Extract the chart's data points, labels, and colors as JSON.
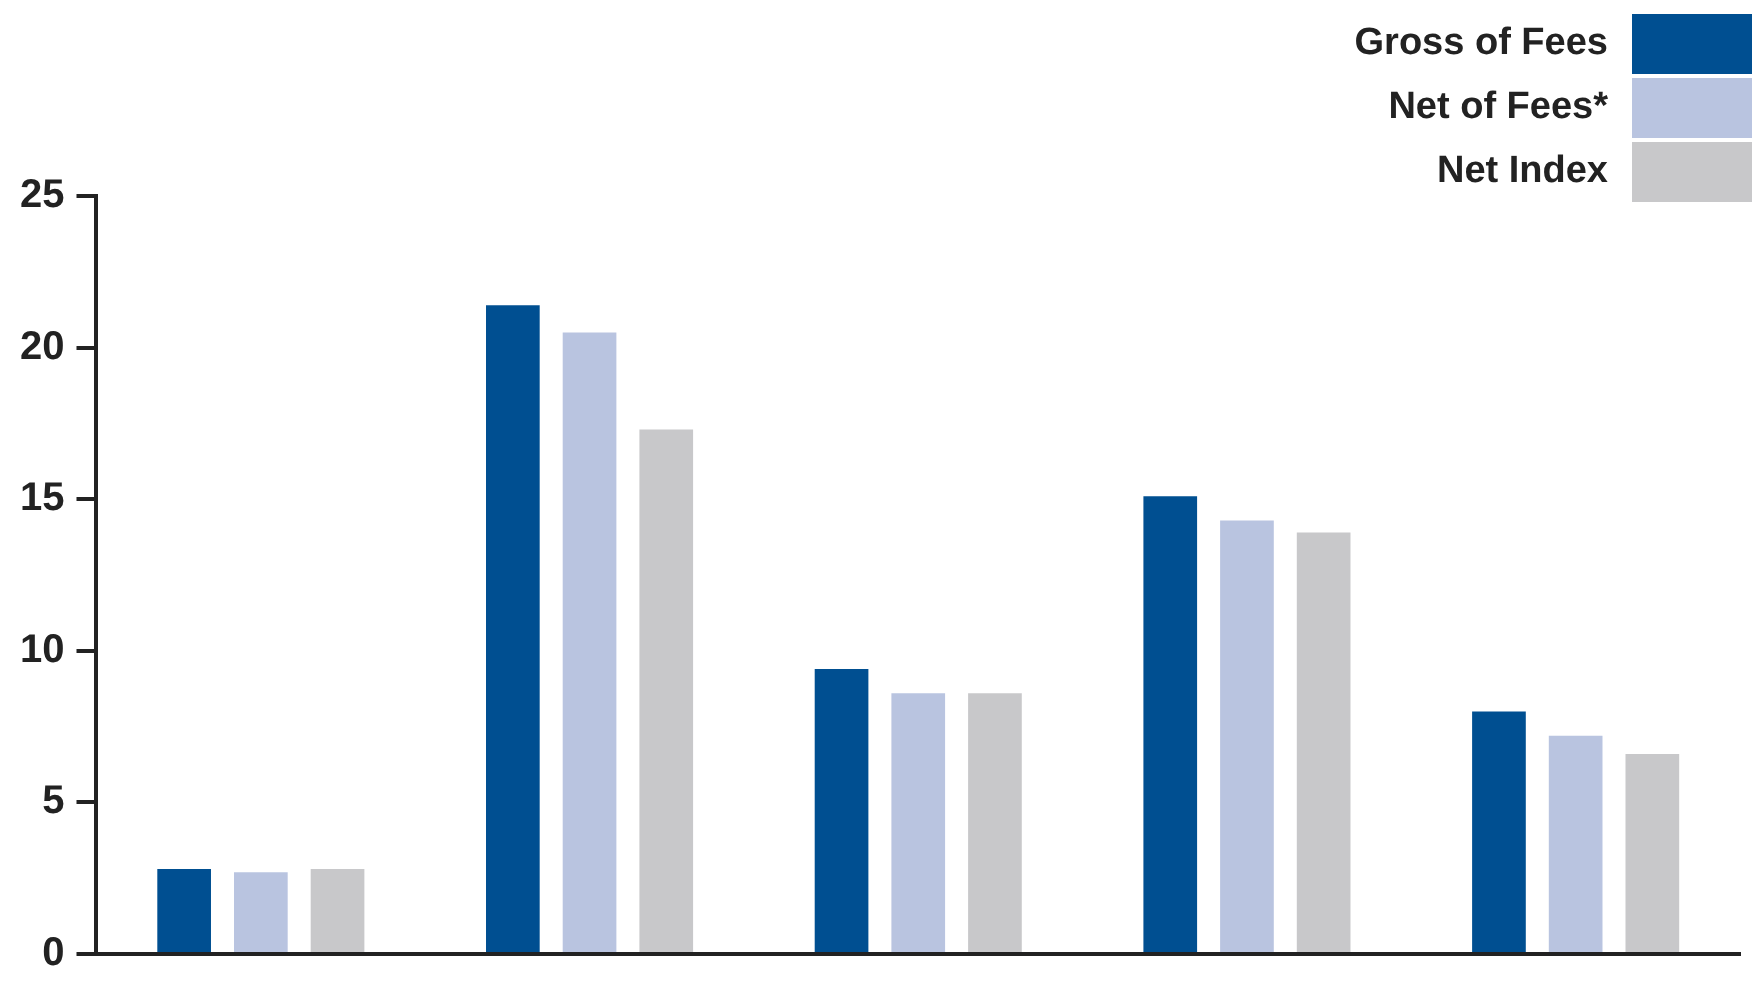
{
  "chart_data": {
    "type": "bar",
    "categories": [
      null,
      null,
      null,
      null,
      null
    ],
    "series": [
      {
        "name": "Gross of Fees",
        "color": "#004f91",
        "values": [
          2.8,
          21.4,
          9.4,
          15.1,
          8.0
        ]
      },
      {
        "name": "Net of Fees*",
        "color": "#b9c4e0",
        "values": [
          2.7,
          20.5,
          8.6,
          14.3,
          7.2
        ]
      },
      {
        "name": "Net Index",
        "color": "#c8c8ca",
        "values": [
          2.8,
          17.3,
          8.6,
          13.9,
          6.6
        ]
      }
    ],
    "ylim": [
      0,
      25
    ],
    "yticks": [
      0,
      5,
      10,
      15,
      20,
      25
    ],
    "grid": false,
    "legend": "top right",
    "tick_labels": "y"
  }
}
